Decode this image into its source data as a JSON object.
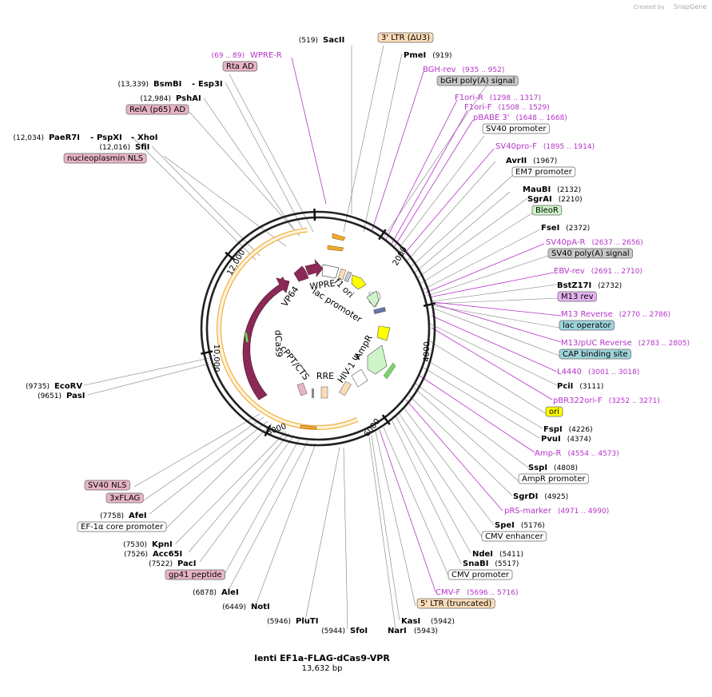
{
  "credit": {
    "created_by": "Created by",
    "brand": "SnapGene"
  },
  "plasmid": {
    "name": "lenti EF1a-FLAG-dCas9-VPR",
    "size": "13,632 bp"
  },
  "ticks": [
    "2000",
    "4000",
    "6000",
    "8000",
    "10,000",
    "12,000"
  ],
  "inner_labels": [
    "WPRE",
    "f1 ori",
    "lac promoter",
    "VP64",
    "cPPT/CTS",
    "dCas9",
    "RRE",
    "HIV-1 Ψ",
    "AmpR"
  ],
  "enzymes": [
    {
      "name": "SacII",
      "pos": "(519)"
    },
    {
      "name": "PmeI",
      "pos": "(919)"
    },
    {
      "name": "AvrII",
      "pos": "(1967)"
    },
    {
      "name": "MauBI",
      "pos": "(2132)"
    },
    {
      "name": "SgrAI",
      "pos": "(2210)"
    },
    {
      "name": "FseI",
      "pos": "(2372)"
    },
    {
      "name": "BstZ17I",
      "pos": "(2732)"
    },
    {
      "name": "PciI",
      "pos": "(3111)"
    },
    {
      "name": "FspI",
      "pos": "(4226)"
    },
    {
      "name": "PvuI",
      "pos": "(4374)"
    },
    {
      "name": "SspI",
      "pos": "(4808)"
    },
    {
      "name": "SgrDI",
      "pos": "(4925)"
    },
    {
      "name": "SpeI",
      "pos": "(5176)"
    },
    {
      "name": "NdeI",
      "pos": "(5411)"
    },
    {
      "name": "SnaBI",
      "pos": "(5517)"
    },
    {
      "name": "KasI",
      "pos": "(5942)"
    },
    {
      "name": "NarI",
      "pos": "(5943)"
    },
    {
      "name": "SfoI",
      "pos": "(5944)"
    },
    {
      "name": "PluTI",
      "pos": "(5946)"
    },
    {
      "name": "NotI",
      "pos": "(6449)"
    },
    {
      "name": "AleI",
      "pos": "(6878)"
    },
    {
      "name": "PacI",
      "pos": "(7522)"
    },
    {
      "name": "Acc65I",
      "pos": "(7526)"
    },
    {
      "name": "KpnI",
      "pos": "(7530)"
    },
    {
      "name": "AfeI",
      "pos": "(7758)"
    },
    {
      "name": "PasI",
      "pos": "(9651)"
    },
    {
      "name": "EcoRV",
      "pos": "(9735)"
    },
    {
      "name": "SfiI",
      "pos": "(12,016)"
    },
    {
      "name": "PaeR7I",
      "pos": "(12,034)"
    },
    {
      "name": "PspXI",
      "pos": ""
    },
    {
      "name": "XhoI",
      "pos": ""
    },
    {
      "name": "PshAI",
      "pos": "(12,984)"
    },
    {
      "name": "BsmBI",
      "pos": "(13,339)"
    },
    {
      "name": "Esp3I",
      "pos": ""
    }
  ],
  "primers": [
    {
      "name": "WPRE-R",
      "pos": "(69 .. 89)"
    },
    {
      "name": "BGH-rev",
      "pos": "(935 .. 952)"
    },
    {
      "name": "F1ori-R",
      "pos": "(1298 .. 1317)"
    },
    {
      "name": "F1ori-F",
      "pos": "(1508 .. 1529)"
    },
    {
      "name": "pBABE 3'",
      "pos": "(1648 .. 1668)"
    },
    {
      "name": "SV40pro-F",
      "pos": "(1895 .. 1914)"
    },
    {
      "name": "SV40pA-R",
      "pos": "(2637 .. 2656)"
    },
    {
      "name": "EBV-rev",
      "pos": "(2691 .. 2710)"
    },
    {
      "name": "M13 Reverse",
      "pos": "(2770 .. 2786)"
    },
    {
      "name": "M13/pUC Reverse",
      "pos": "(2783 .. 2805)"
    },
    {
      "name": "L4440",
      "pos": "(3001 .. 3018)"
    },
    {
      "name": "pBR322ori-F",
      "pos": "(3252 .. 3271)"
    },
    {
      "name": "Amp-R",
      "pos": "(4554 .. 4573)"
    },
    {
      "name": "pRS-marker",
      "pos": "(4971 .. 4990)"
    },
    {
      "name": "CMV-F",
      "pos": "(5696 .. 5716)"
    }
  ],
  "features": [
    {
      "name": "3' LTR (ΔU3)",
      "color": "#fcdcb8"
    },
    {
      "name": "Rta AD",
      "color": "#e8b4c8"
    },
    {
      "name": "bGH poly(A) signal",
      "color": "#c8c8c8"
    },
    {
      "name": "RelA (p65) AD",
      "color": "#e8b4c8"
    },
    {
      "name": "SV40 promoter",
      "color": "#ffffff"
    },
    {
      "name": "nucleoplasmin NLS",
      "color": "#e8b4c8"
    },
    {
      "name": "EM7 promoter",
      "color": "#ffffff"
    },
    {
      "name": "BleoR",
      "color": "#cdf5c8"
    },
    {
      "name": "SV40 poly(A) signal",
      "color": "#c8c8c8"
    },
    {
      "name": "M13 rev",
      "color": "#e4b4f0"
    },
    {
      "name": "lac operator",
      "color": "#9ed4dc"
    },
    {
      "name": "CAP binding site",
      "color": "#9ed4dc"
    },
    {
      "name": "ori",
      "color": "#ffff00"
    },
    {
      "name": "AmpR promoter",
      "color": "#ffffff"
    },
    {
      "name": "CMV enhancer",
      "color": "#ffffff"
    },
    {
      "name": "CMV promoter",
      "color": "#ffffff"
    },
    {
      "name": "5' LTR (truncated)",
      "color": "#fcdcb8"
    },
    {
      "name": "SV40 NLS",
      "color": "#e8b4c8"
    },
    {
      "name": "3xFLAG",
      "color": "#e8b4c8"
    },
    {
      "name": "EF-1α core promoter",
      "color": "#ffffff"
    },
    {
      "name": "gp41 peptide",
      "color": "#e8b4c8"
    }
  ],
  "colors": {
    "primer": "#b633c9",
    "dcas9": "#8b2a57",
    "orange": "#f0a830",
    "ori": "#ffff00",
    "green": "#cdf5c8",
    "ring": "#222222"
  }
}
